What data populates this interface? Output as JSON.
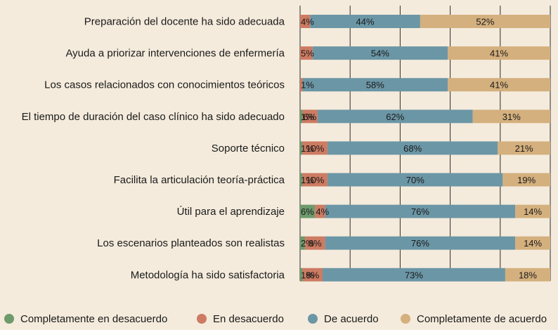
{
  "chart_data": {
    "type": "bar",
    "orientation": "horizontal-stacked-100",
    "categories": [
      "Preparación del docente ha sido adecuada",
      "Ayuda a priorizar intervenciones de enfermería",
      "Los casos relacionados con conocimientos teóricos",
      "El tiempo de duración del caso clínico ha sido adecuado",
      "Soporte técnico",
      "Facilita la articulación teoría-práctica",
      "Útil para el aprendizaje",
      "Los escenarios planteados son realistas",
      "Metodología ha sido satisfactoria"
    ],
    "series": [
      {
        "name": "Completamente en desacuerdo",
        "color": "#6e9a6c",
        "values": [
          0,
          0,
          0,
          1,
          1,
          1,
          6,
          2,
          1
        ]
      },
      {
        "name": "En desacuerdo",
        "color": "#cd7b63",
        "values": [
          4,
          5,
          1,
          6,
          10,
          10,
          4,
          8,
          8
        ]
      },
      {
        "name": "De acuerdo",
        "color": "#6b96a6",
        "values": [
          44,
          54,
          58,
          62,
          68,
          70,
          76,
          76,
          73
        ]
      },
      {
        "name": "Completamente de acuerdo",
        "color": "#d4b07e",
        "values": [
          52,
          41,
          41,
          31,
          21,
          19,
          14,
          14,
          18
        ]
      }
    ],
    "labels": [
      [
        "",
        "4%",
        "44%",
        "52%"
      ],
      [
        "",
        "5%",
        "54%",
        "41%"
      ],
      [
        "",
        "1%",
        "58%",
        "41%"
      ],
      [
        "1%",
        "6%",
        "62%",
        "31%"
      ],
      [
        "1%",
        "10%",
        "68%",
        "21%"
      ],
      [
        "1%",
        "10%",
        "70%",
        "19%"
      ],
      [
        "6%",
        "4%",
        "76%",
        "14%"
      ],
      [
        "2%",
        "8%",
        "76%",
        "14%"
      ],
      [
        "1%",
        "8%",
        "73%",
        "18%"
      ]
    ],
    "xlim": [
      0,
      100
    ],
    "grid": true,
    "legend": "bottom"
  }
}
